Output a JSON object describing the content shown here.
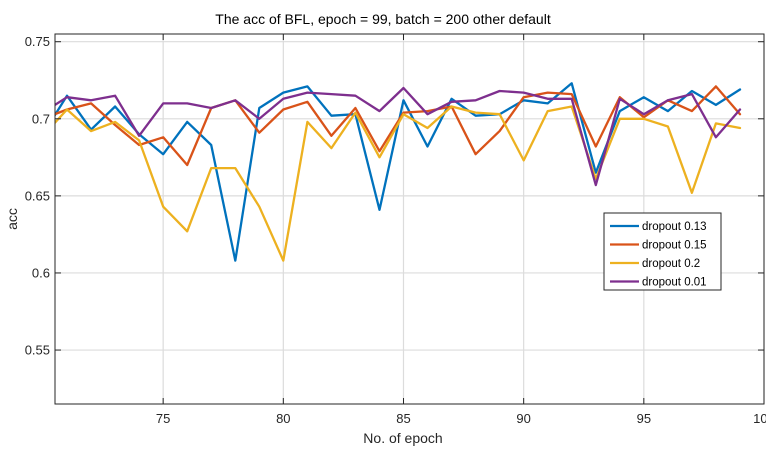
{
  "chart_data": {
    "type": "line",
    "title": "The acc of BFL, epoch = 99, batch = 200 other default",
    "xlabel": "No. of epoch",
    "ylabel": "acc",
    "xlim": [
      70.5,
      100
    ],
    "ylim": [
      0.515,
      0.755
    ],
    "xticks": [
      75,
      80,
      85,
      90,
      95,
      100
    ],
    "yticks": [
      0.55,
      0.6,
      0.65,
      0.7,
      0.75
    ],
    "xtick_labels": [
      "75",
      "80",
      "85",
      "90",
      "95",
      "100"
    ],
    "ytick_labels": [
      "0.55",
      "0.6",
      "0.65",
      "0.7",
      "0.75"
    ],
    "grid": true,
    "legend_position": "right-middle",
    "x": [
      70,
      71,
      72,
      73,
      74,
      75,
      76,
      77,
      78,
      79,
      80,
      81,
      82,
      83,
      84,
      85,
      86,
      87,
      88,
      89,
      90,
      91,
      92,
      93,
      94,
      95,
      96,
      97,
      98,
      99
    ],
    "series": [
      {
        "name": "dropout 0.13",
        "color": "#0072BD",
        "values": [
          0.69,
          0.715,
          0.693,
          0.708,
          0.69,
          0.677,
          0.698,
          0.683,
          0.608,
          0.707,
          0.717,
          0.721,
          0.702,
          0.703,
          0.641,
          0.712,
          0.682,
          0.713,
          0.702,
          0.703,
          0.712,
          0.71,
          0.723,
          0.665,
          0.705,
          0.714,
          0.705,
          0.718,
          0.709,
          0.719
        ]
      },
      {
        "name": "dropout 0.15",
        "color": "#D95319",
        "values": [
          0.7,
          0.706,
          0.71,
          0.696,
          0.683,
          0.688,
          0.67,
          0.707,
          0.712,
          0.691,
          0.706,
          0.711,
          0.689,
          0.707,
          0.679,
          0.704,
          0.705,
          0.708,
          0.677,
          0.692,
          0.714,
          0.717,
          0.716,
          0.682,
          0.714,
          0.701,
          0.712,
          0.705,
          0.721,
          0.703
        ]
      },
      {
        "name": "dropout 0.2",
        "color": "#EDB120",
        "values": [
          0.689,
          0.706,
          0.692,
          0.698,
          0.686,
          0.643,
          0.627,
          0.668,
          0.668,
          0.643,
          0.608,
          0.698,
          0.681,
          0.704,
          0.675,
          0.703,
          0.694,
          0.708,
          0.704,
          0.703,
          0.673,
          0.705,
          0.708,
          0.661,
          0.7,
          0.7,
          0.695,
          0.652,
          0.697,
          0.694
        ]
      },
      {
        "name": "dropout 0.01",
        "color": "#7E2F8E",
        "values": [
          0.704,
          0.714,
          0.712,
          0.715,
          0.689,
          0.71,
          0.71,
          0.707,
          0.712,
          0.7,
          0.713,
          0.717,
          0.716,
          0.715,
          0.705,
          0.72,
          0.703,
          0.711,
          0.712,
          0.718,
          0.717,
          0.713,
          0.713,
          0.657,
          0.713,
          0.703,
          0.712,
          0.716,
          0.688,
          0.706
        ]
      }
    ]
  }
}
